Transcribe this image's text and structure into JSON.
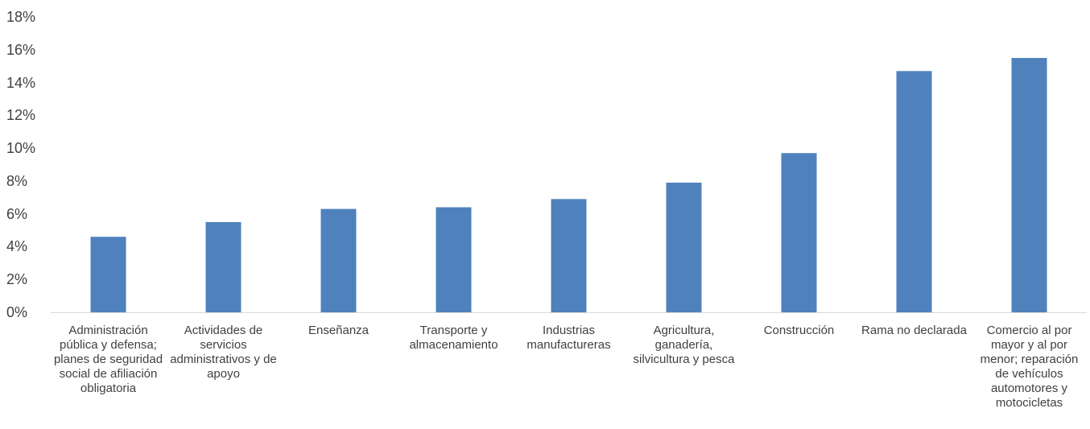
{
  "chart_data": {
    "type": "bar",
    "categories": [
      "Administración pública y defensa; planes de seguridad social de afiliación obligatoria",
      "Actividades de servicios administrativos y de apoyo",
      "Enseñanza",
      "Transporte y almacenamiento",
      "Industrias manufactureras",
      "Agricultura, ganadería, silvicultura y pesca",
      "Construcción",
      "Rama no declarada",
      "Comercio al por mayor y al por menor; reparación de vehículos automotores y motocicletas"
    ],
    "values": [
      4.6,
      5.5,
      6.3,
      6.4,
      6.9,
      7.9,
      9.7,
      14.7,
      15.5
    ],
    "yticks": [
      "0%",
      "2%",
      "4%",
      "6%",
      "8%",
      "10%",
      "12%",
      "14%",
      "16%",
      "18%"
    ],
    "ylim": [
      0,
      18
    ],
    "grid": false,
    "bar_color": "#4F81BD",
    "axis_color": "#D9D9D9",
    "text_color": "#404040"
  }
}
